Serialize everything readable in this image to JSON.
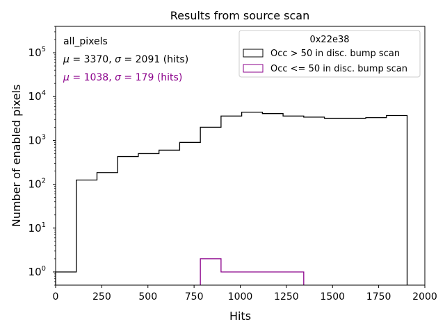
{
  "chart_data": {
    "type": "histogram",
    "title": "Results from source scan",
    "xlabel": "Hits",
    "ylabel": "Number of enabled pixels",
    "xlim": [
      0,
      2000
    ],
    "ylim": [
      0.5,
      400000
    ],
    "yscale": "log",
    "x_ticks": [
      0,
      250,
      500,
      750,
      1000,
      1250,
      1500,
      1750,
      2000
    ],
    "x_tick_labels": [
      "0",
      "250",
      "500",
      "750",
      "1000",
      "1250",
      "1500",
      "1750",
      "2000"
    ],
    "y_ticks": [
      1,
      10,
      100,
      1000,
      10000,
      100000
    ],
    "y_tick_labels": [
      {
        "base": "10",
        "exp": "0"
      },
      {
        "base": "10",
        "exp": "1"
      },
      {
        "base": "10",
        "exp": "2"
      },
      {
        "base": "10",
        "exp": "3"
      },
      {
        "base": "10",
        "exp": "4"
      },
      {
        "base": "10",
        "exp": "5"
      }
    ],
    "bin_edges": [
      0,
      112,
      224,
      336,
      448,
      560,
      672,
      784,
      896,
      1008,
      1120,
      1232,
      1344,
      1456,
      1568,
      1680,
      1792,
      1904
    ],
    "series": [
      {
        "name": "Occ > 50 in disc. bump scan",
        "color": "#000000",
        "values": [
          1,
          125,
          185,
          430,
          500,
          600,
          900,
          2000,
          3600,
          4400,
          4100,
          3600,
          3400,
          3200,
          3200,
          3300,
          3700
        ]
      },
      {
        "name": "Occ <= 50 in disc. bump scan",
        "color": "#8b008b",
        "values": [
          0,
          0,
          0,
          0,
          0,
          0,
          0,
          2,
          1,
          1,
          1,
          1,
          0,
          0,
          0,
          0,
          0
        ]
      }
    ],
    "legend": {
      "title": "0x22e38",
      "placement": "top-right"
    },
    "annotations": {
      "label": "all_pixels",
      "stats": [
        {
          "mu": "3370",
          "sigma": "2091",
          "unit": "(hits)",
          "color": "#000000"
        },
        {
          "mu": "1038",
          "sigma": "179",
          "unit": "(hits)",
          "color": "#8b008b"
        }
      ]
    }
  }
}
